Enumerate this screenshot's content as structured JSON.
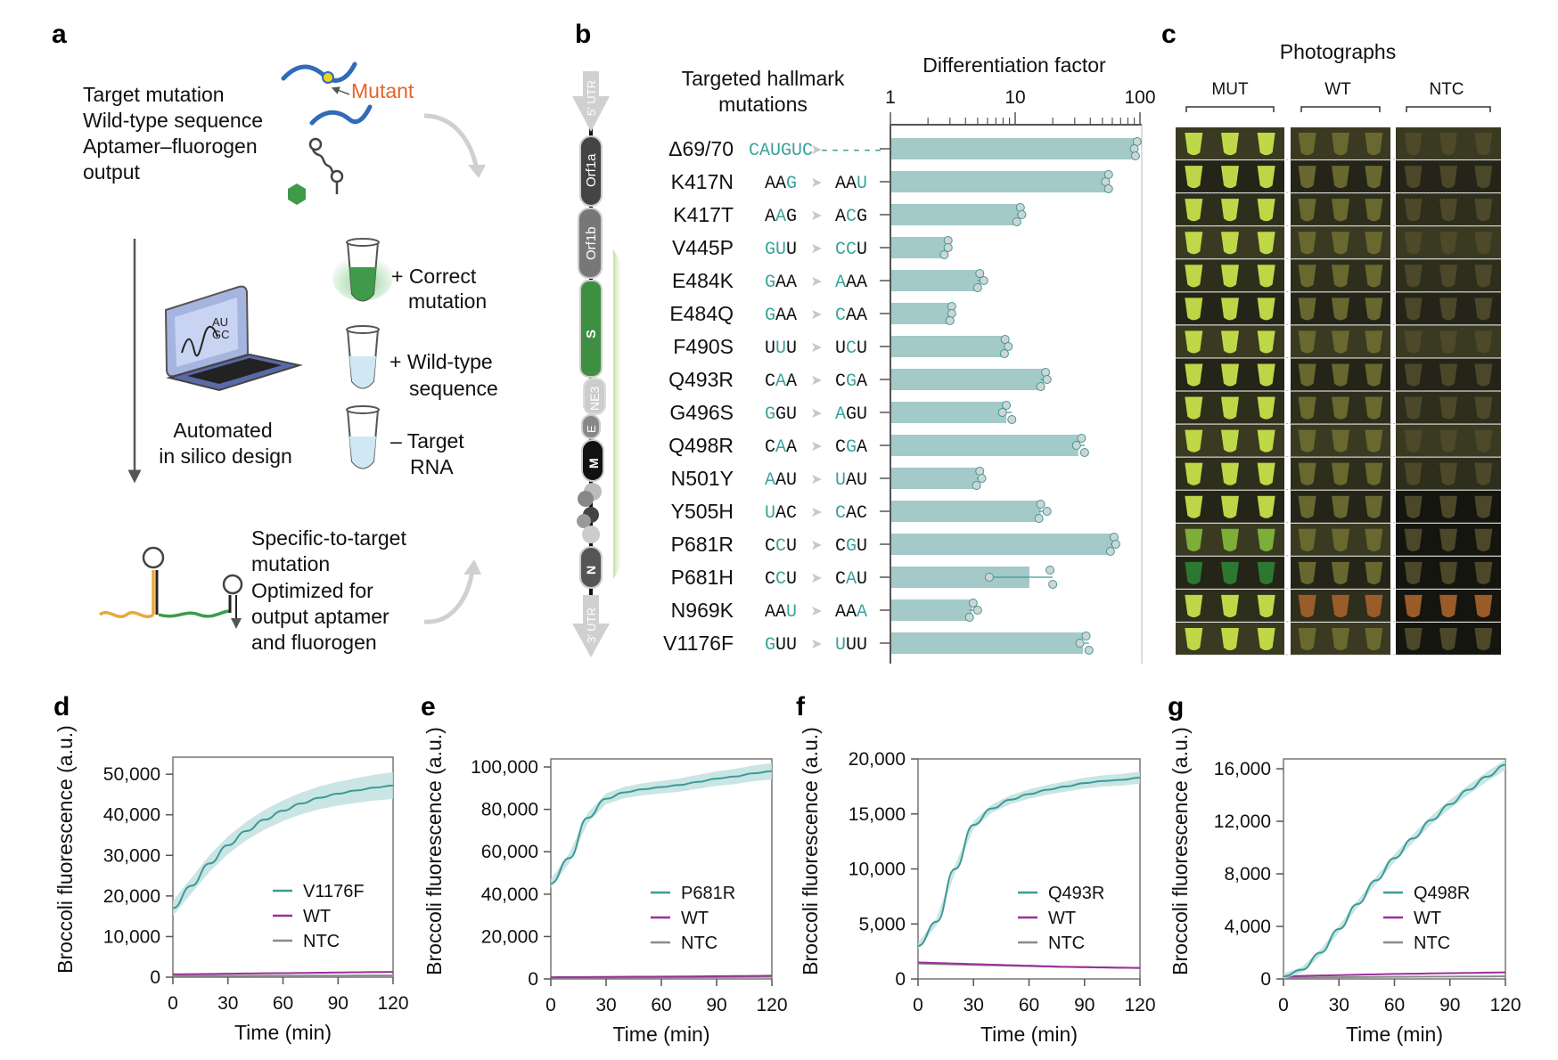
{
  "panel_labels": {
    "a": "a",
    "b": "b",
    "c": "c",
    "d": "d",
    "e": "e",
    "f": "f",
    "g": "g"
  },
  "panel_a": {
    "legend_lines": [
      "Target mutation",
      "Wild-type sequence",
      "Aptamer–fluorogen",
      "output"
    ],
    "mutant_label": "Mutant",
    "laptop_text": [
      "AU",
      "GC"
    ],
    "design_lines": [
      "Automated",
      "in silico design"
    ],
    "tubes": [
      {
        "lines": [
          "+ Correct",
          "mutation"
        ]
      },
      {
        "lines": [
          "+ Wild-type",
          "sequence"
        ]
      },
      {
        "lines": [
          "– Target",
          "RNA"
        ]
      }
    ],
    "output_lines": [
      "Specific-to-target",
      "mutation",
      "Optimized for",
      "output aptamer",
      "and fluorogen"
    ],
    "colors": {
      "mutant": "#e8622a",
      "sequence": "#2f6bb8",
      "fluorogen": "#3f9a4a"
    }
  },
  "genome": {
    "segments": [
      "5′ UTR",
      "Orf1a",
      "Orf1b",
      "S",
      "NE3",
      "E",
      "M",
      "N",
      "3′ UTR"
    ]
  },
  "panel_c": {
    "title": "Photographs",
    "groups": [
      "MUT",
      "WT",
      "NTC"
    ]
  },
  "chart_data": [
    {
      "type": "bar",
      "orientation": "horizontal",
      "title": "Differentiation factor",
      "category_header": "Targeted hallmark mutations",
      "xscale": "log",
      "xlim": [
        1,
        100
      ],
      "xticks": [
        "1",
        "10",
        "100"
      ],
      "categories": [
        "Δ69/70",
        "K417N",
        "K417T",
        "V445P",
        "E484K",
        "E484Q",
        "F490S",
        "Q493R",
        "G496S",
        "Q498R",
        "N501Y",
        "Y505H",
        "P681R",
        "P681H",
        "N969K",
        "V1176F"
      ],
      "codons": [
        {
          "from": "CAUGUC",
          "to": "------",
          "hl": [
            0,
            1,
            2,
            3,
            4,
            5
          ]
        },
        {
          "from": "AAG",
          "to": "AAU",
          "hl": [
            2
          ]
        },
        {
          "from": "AAG",
          "to": "ACG",
          "hl": [
            1
          ]
        },
        {
          "from": "GUU",
          "to": "CCU",
          "hl": [
            0,
            1
          ]
        },
        {
          "from": "GAA",
          "to": "AAA",
          "hl": [
            0
          ]
        },
        {
          "from": "GAA",
          "to": "CAA",
          "hl": [
            0
          ]
        },
        {
          "from": "UUU",
          "to": "UCU",
          "hl": [
            1
          ]
        },
        {
          "from": "CAA",
          "to": "CGA",
          "hl": [
            1
          ]
        },
        {
          "from": "GGU",
          "to": "AGU",
          "hl": [
            0
          ]
        },
        {
          "from": "CAA",
          "to": "CGA",
          "hl": [
            1
          ]
        },
        {
          "from": "AAU",
          "to": "UAU",
          "hl": [
            0
          ]
        },
        {
          "from": "UAC",
          "to": "CAC",
          "hl": [
            0
          ]
        },
        {
          "from": "CCU",
          "to": "CGU",
          "hl": [
            1
          ]
        },
        {
          "from": "CCU",
          "to": "CAU",
          "hl": [
            1
          ]
        },
        {
          "from": "AAU",
          "to": "AAA",
          "hl": [
            2
          ]
        },
        {
          "from": "GUU",
          "to": "UUU",
          "hl": [
            0
          ]
        }
      ],
      "values": [
        92,
        55,
        10.5,
        2.8,
        5.3,
        3.0,
        8.5,
        17,
        8.5,
        32,
        5.0,
        16,
        60,
        13,
        4.5,
        35
      ],
      "replicates": [
        [
          95,
          90,
          92
        ],
        [
          56,
          53,
          56
        ],
        [
          11,
          11.3,
          10.3
        ],
        [
          2.9,
          2.9,
          2.7
        ],
        [
          5.2,
          5.6,
          5.0
        ],
        [
          3.1,
          3.1,
          3.0
        ],
        [
          8.3,
          8.8,
          8.2
        ],
        [
          17.5,
          18,
          16
        ],
        [
          8.5,
          7.9,
          9.4
        ],
        [
          34,
          31,
          36
        ],
        [
          5.2,
          5.4,
          4.9
        ],
        [
          16,
          18,
          15.5
        ],
        [
          62,
          64,
          58
        ],
        [
          19,
          6.2,
          20
        ],
        [
          4.6,
          5,
          4.3
        ],
        [
          37,
          33,
          39
        ]
      ],
      "colors": {
        "bar": "#a3c9c8",
        "point": "#d0d4d4",
        "highlight": "#3aa39a"
      }
    },
    {
      "type": "line",
      "panel": "d",
      "xlabel": "Time (min)",
      "ylabel": "Broccoli fluorescence (a.u.)",
      "xlim": [
        0,
        120
      ],
      "ylim": [
        0,
        54200
      ],
      "xticks": [
        0,
        30,
        60,
        90,
        120
      ],
      "xtick_labels": [
        "0",
        "30",
        "60",
        "90",
        "120"
      ],
      "yticks": [
        0,
        10000,
        20000,
        30000,
        40000,
        50000
      ],
      "ytick_labels": [
        "0",
        "10,000",
        "20,000",
        "30,000",
        "40,000",
        "50,000"
      ],
      "x": [
        0,
        10,
        20,
        30,
        40,
        50,
        60,
        70,
        80,
        90,
        100,
        110,
        120
      ],
      "series": [
        {
          "name": "V1176F",
          "color": "#3d9a95",
          "band": 3000,
          "values": [
            17000,
            22500,
            28000,
            32500,
            36000,
            38800,
            41000,
            42800,
            44200,
            45200,
            46000,
            46700,
            47200
          ]
        },
        {
          "name": "WT",
          "color": "#9b2f9b",
          "values": [
            700,
            750,
            800,
            850,
            900,
            950,
            1000,
            1050,
            1100,
            1150,
            1200,
            1250,
            1300
          ]
        },
        {
          "name": "NTC",
          "color": "#8a8a8a",
          "values": [
            300,
            310,
            320,
            330,
            340,
            350,
            360,
            370,
            380,
            390,
            400,
            410,
            420
          ]
        }
      ]
    },
    {
      "type": "line",
      "panel": "e",
      "xlabel": "Time (min)",
      "ylabel": "Broccoli fluorescence (a.u.)",
      "xlim": [
        0,
        120
      ],
      "ylim": [
        0,
        103800
      ],
      "xticks": [
        0,
        30,
        60,
        90,
        120
      ],
      "xtick_labels": [
        "0",
        "30",
        "60",
        "90",
        "120"
      ],
      "yticks": [
        0,
        20000,
        40000,
        60000,
        80000,
        100000
      ],
      "ytick_labels": [
        "0",
        "20,000",
        "40,000",
        "60,000",
        "80,000",
        "100,000"
      ],
      "x": [
        0,
        10,
        20,
        30,
        40,
        50,
        60,
        70,
        80,
        90,
        100,
        110,
        120
      ],
      "series": [
        {
          "name": "P681R",
          "color": "#3d9a95",
          "band": 3500,
          "values": [
            45000,
            57000,
            76000,
            85000,
            88000,
            89500,
            90500,
            91500,
            93000,
            94500,
            95500,
            97000,
            98000
          ]
        },
        {
          "name": "WT",
          "color": "#9b2f9b",
          "values": [
            800,
            850,
            900,
            950,
            1000,
            1050,
            1100,
            1150,
            1200,
            1300,
            1350,
            1400,
            1500
          ]
        },
        {
          "name": "NTC",
          "color": "#8a8a8a",
          "values": [
            500,
            540,
            580,
            620,
            660,
            700,
            740,
            780,
            820,
            860,
            900,
            950,
            1000
          ]
        }
      ]
    },
    {
      "type": "line",
      "panel": "f",
      "xlabel": "Time (min)",
      "ylabel": "Broccoli fluorescence (a.u.)",
      "xlim": [
        0,
        120
      ],
      "ylim": [
        0,
        20000
      ],
      "xticks": [
        0,
        30,
        60,
        90,
        120
      ],
      "xtick_labels": [
        "0",
        "30",
        "60",
        "90",
        "120"
      ],
      "yticks": [
        0,
        5000,
        10000,
        15000,
        20000
      ],
      "ytick_labels": [
        "0",
        "5,000",
        "10,000",
        "15,000",
        "20,000"
      ],
      "x": [
        0,
        10,
        20,
        30,
        40,
        50,
        60,
        70,
        80,
        90,
        100,
        110,
        120
      ],
      "series": [
        {
          "name": "Q493R",
          "color": "#3d9a95",
          "band": 500,
          "values": [
            3000,
            5200,
            10000,
            14000,
            15500,
            16300,
            16800,
            17200,
            17500,
            17800,
            18000,
            18100,
            18300
          ]
        },
        {
          "name": "WT",
          "color": "#9b2f9b",
          "values": [
            1500,
            1450,
            1400,
            1350,
            1300,
            1250,
            1200,
            1150,
            1100,
            1080,
            1050,
            1020,
            1000
          ]
        },
        {
          "name": "NTC",
          "color": "#8a8a8a",
          "values": [
            1400,
            1360,
            1320,
            1280,
            1240,
            1200,
            1160,
            1120,
            1090,
            1060,
            1040,
            1020,
            1000
          ]
        }
      ]
    },
    {
      "type": "line",
      "panel": "g",
      "xlabel": "Time (min)",
      "ylabel": "Broccoli fluorescence (a.u.)",
      "xlim": [
        0,
        120
      ],
      "ylim": [
        0,
        16750
      ],
      "xticks": [
        0,
        30,
        60,
        90,
        120
      ],
      "xtick_labels": [
        "0",
        "30",
        "60",
        "90",
        "120"
      ],
      "yticks": [
        0,
        4000,
        8000,
        12000,
        16000
      ],
      "ytick_labels": [
        "0",
        "4,000",
        "8,000",
        "12,000",
        "16,000"
      ],
      "x": [
        0,
        10,
        20,
        30,
        40,
        50,
        60,
        70,
        80,
        90,
        100,
        110,
        120
      ],
      "series": [
        {
          "name": "Q498R",
          "color": "#3d9a95",
          "band": 350,
          "values": [
            200,
            700,
            2000,
            3800,
            5700,
            7500,
            9200,
            10700,
            12100,
            13300,
            14400,
            15400,
            16300
          ]
        },
        {
          "name": "WT",
          "color": "#9b2f9b",
          "values": [
            200,
            230,
            260,
            290,
            320,
            350,
            380,
            400,
            420,
            440,
            460,
            480,
            500
          ]
        },
        {
          "name": "NTC",
          "color": "#8a8a8a",
          "values": [
            100,
            110,
            120,
            130,
            140,
            150,
            160,
            170,
            175,
            180,
            185,
            190,
            200
          ]
        }
      ]
    }
  ]
}
